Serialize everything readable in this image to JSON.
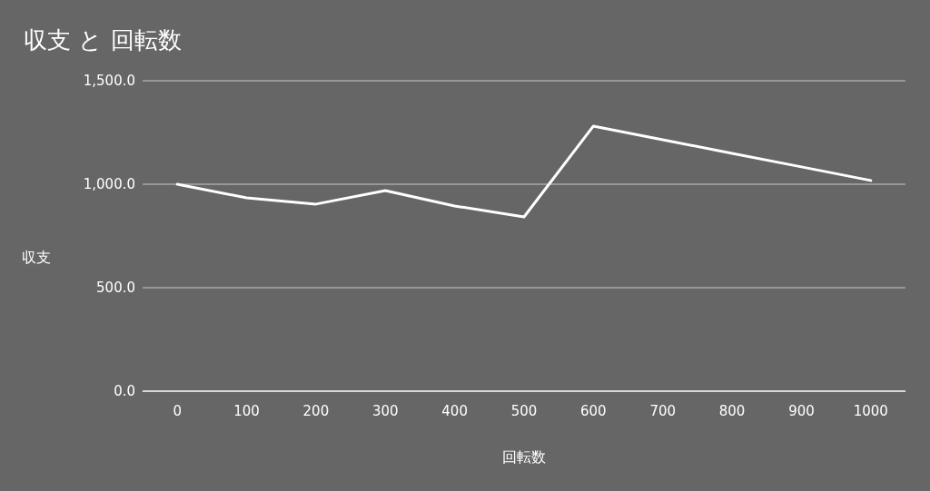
{
  "chart_data": {
    "type": "line",
    "title": "収支 と 回転数",
    "xlabel": "回転数",
    "ylabel": "収支",
    "categories": [
      "0",
      "100",
      "200",
      "300",
      "400",
      "500",
      "600",
      "700",
      "800",
      "900",
      "1000"
    ],
    "series": [
      {
        "color": "#ffffff",
        "values": [
          1000,
          934,
          904,
          969,
          895,
          842,
          1281,
          1215,
          1149,
          1084,
          1018
        ]
      }
    ],
    "ylim": [
      0,
      1500
    ],
    "yticks": [
      {
        "value": 0,
        "label": "0.0"
      },
      {
        "value": 500,
        "label": "500.0"
      },
      {
        "value": 1000,
        "label": "1,000.0"
      },
      {
        "value": 1500,
        "label": "1,500.0"
      }
    ],
    "grid": "y"
  }
}
